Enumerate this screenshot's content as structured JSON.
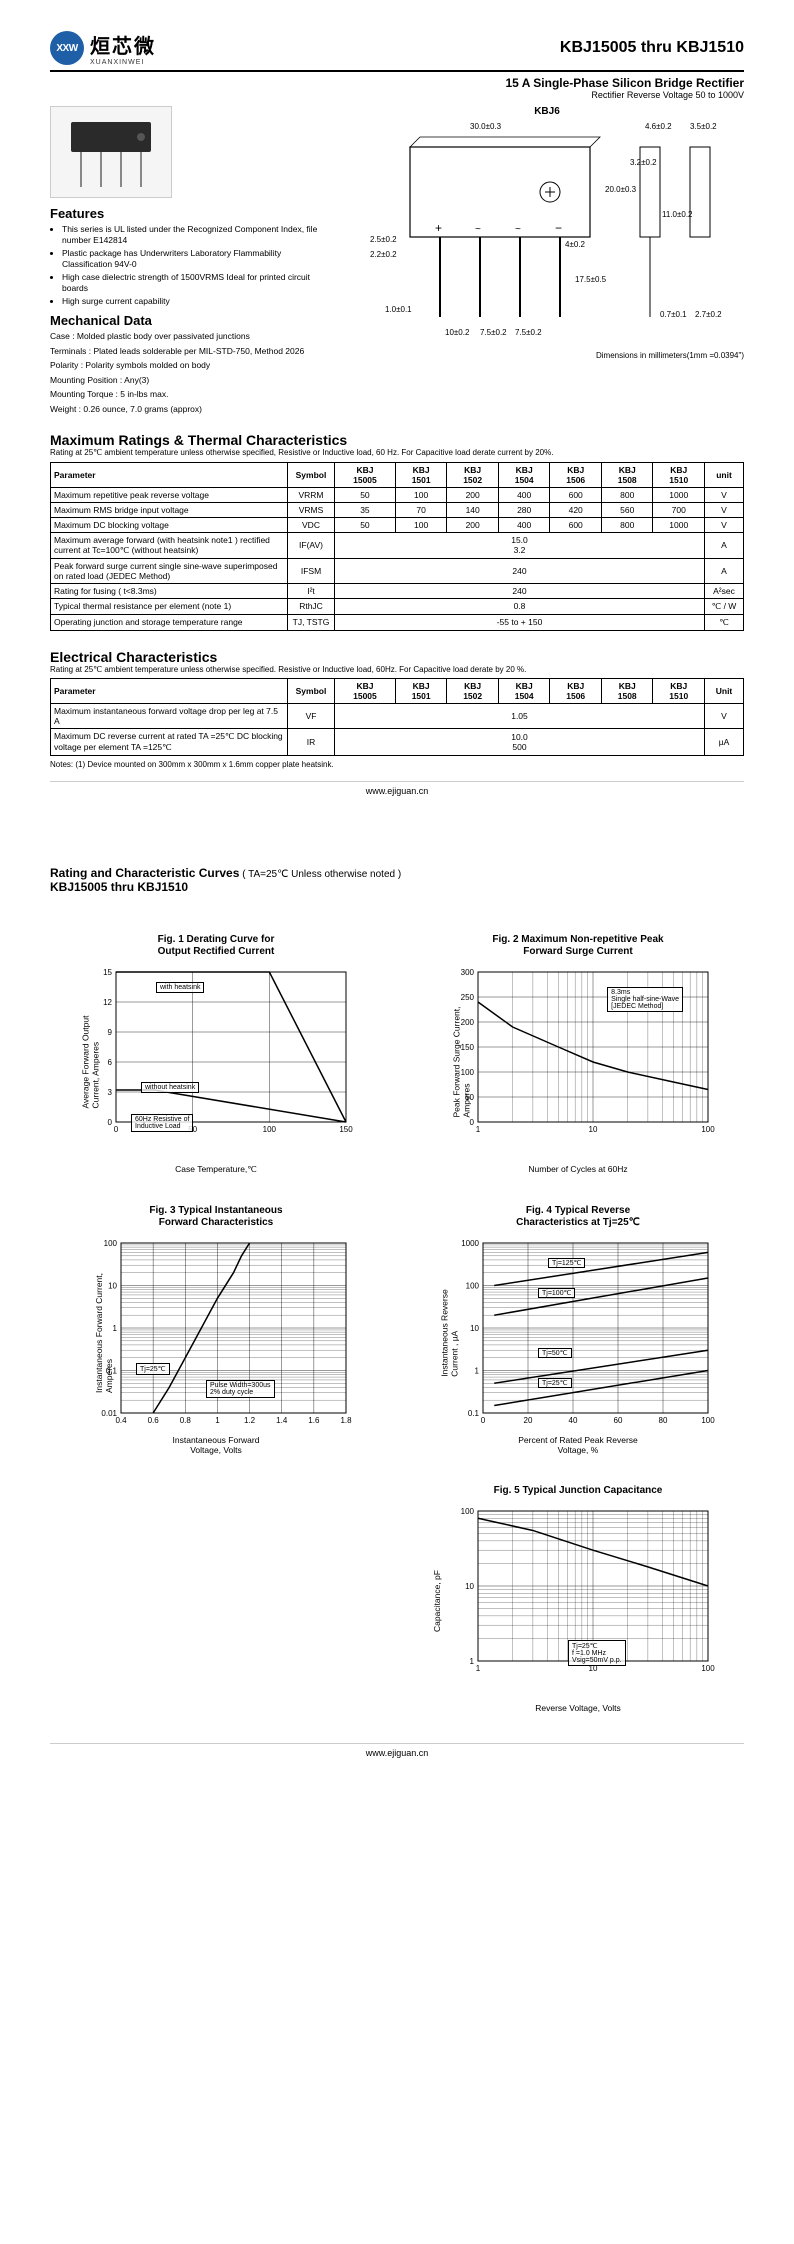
{
  "header": {
    "logo_abbrev": "XXW",
    "logo_cn": "烜芯微",
    "logo_en": "XUANXINWEI",
    "title": "KBJ15005 thru KBJ1510",
    "subtitle": "15 A Single-Phase Silicon Bridge Rectifier",
    "subtitle2": "Rectifier Reverse Voltage 50 to 1000V",
    "package_label": "KBJ6"
  },
  "features": {
    "heading": "Features",
    "items": [
      "This series is UL listed under the Recognized Component Index, file number E142814",
      "Plastic package has Underwriters Laboratory Flammability Classification 94V-0",
      "High case dielectric strength of 1500VRMS Ideal for printed circuit boards",
      "High surge current capability"
    ]
  },
  "mechanical": {
    "heading": "Mechanical Data",
    "case": "Case : Molded plastic body over passivated junctions",
    "terminals": "Terminals : Plated leads solderable per MIL-STD-750, Method 2026",
    "polarity": "Polarity : Polarity symbols molded on body",
    "mounting_pos": "Mounting Position : Any(3)",
    "mounting_torque": "Mounting Torque : 5 in-lbs max.",
    "weight": "Weight : 0.26 ounce, 7.0 grams (approx)"
  },
  "dimensions_note": "Dimensions in millimeters(1mm =0.0394\")",
  "dims": {
    "w": "30.0±0.3",
    "h": "20.0±0.3",
    "hole": "3.2±0.2",
    "edge1": "4.6±0.2",
    "edge2": "3.5±0.2",
    "pin_h": "11.0±0.2",
    "lead": "17.5±0.5",
    "t1": "2.5±0.2",
    "t2": "2.2±0.2",
    "t3": "1.0±0.1",
    "sp": "10±0.2",
    "sp2": "7.5±0.2",
    "sp3": "7.5±0.2",
    "w2": "4±0.2",
    "th": "0.7±0.1",
    "d1": "2.7±0.2"
  },
  "ratings": {
    "heading": "Maximum Ratings & Thermal Characteristics",
    "note": "Rating at 25℃ ambient temperature unless otherwise specified, Resistive or Inductive load, 60 Hz. For Capacitive load derate current by 20%.",
    "columns": [
      "Parameter",
      "Symbol",
      "KBJ 15005",
      "KBJ 1501",
      "KBJ 1502",
      "KBJ 1504",
      "KBJ 1506",
      "KBJ 1508",
      "KBJ 1510",
      "unit"
    ],
    "rows": [
      {
        "param": "Maximum repetitive peak reverse voltage",
        "sym": "VRRM",
        "vals": [
          "50",
          "100",
          "200",
          "400",
          "600",
          "800",
          "1000"
        ],
        "unit": "V"
      },
      {
        "param": "Maximum RMS bridge input voltage",
        "sym": "VRMS",
        "vals": [
          "35",
          "70",
          "140",
          "280",
          "420",
          "560",
          "700"
        ],
        "unit": "V"
      },
      {
        "param": "Maximum DC blocking voltage",
        "sym": "VDC",
        "vals": [
          "50",
          "100",
          "200",
          "400",
          "600",
          "800",
          "1000"
        ],
        "unit": "V"
      },
      {
        "param": "Maximum average forward (with heatsink note1 ) rectified current at Tc=100℃  (without heatsink)",
        "sym": "IF(AV)",
        "span": "15.0\n3.2",
        "unit": "A"
      },
      {
        "param": "Peak forward surge current single sine-wave superimposed on rated load (JEDEC Method)",
        "sym": "IFSM",
        "span": "240",
        "unit": "A"
      },
      {
        "param": "Rating for fusing ( t<8.3ms)",
        "sym": "I²t",
        "span": "240",
        "unit": "A²sec"
      },
      {
        "param": "Typical  thermal resistance per element (note 1)",
        "sym": "RthJC",
        "span": "0.8",
        "unit": "℃ / W"
      },
      {
        "param": "Operating junction and storage temperature range",
        "sym": "TJ, TSTG",
        "span": "-55 to + 150",
        "unit": "℃"
      }
    ]
  },
  "electrical": {
    "heading": "Electrical Characteristics",
    "note": "Rating at 25℃ ambient temperature unless otherwise specified. Resistive or Inductive load, 60Hz. For Capacitive load derate by 20 %.",
    "columns": [
      "Parameter",
      "Symbol",
      "KBJ 15005",
      "KBJ 1501",
      "KBJ 1502",
      "KBJ 1504",
      "KBJ 1506",
      "KBJ 1508",
      "KBJ 1510",
      "Unit"
    ],
    "rows": [
      {
        "param": "Maximum instantaneous forward voltage drop per leg at 7.5 A",
        "sym": "VF",
        "span": "1.05",
        "unit": "V"
      },
      {
        "param": "Maximum DC reverse current at rated  TA =25℃ DC blocking voltage per element      TA =125℃",
        "sym": "IR",
        "span": "10.0\n500",
        "unit": "µA"
      }
    ],
    "notes": "Notes: (1) Device mounted on 300mm x 300mm x 1.6mm copper plate heatsink."
  },
  "footer_url": "www.ejiguan.cn",
  "page2": {
    "heading": "Rating and Characteristic Curves",
    "heading_note": "( TA=25℃ Unless otherwise noted )",
    "subheading": "KBJ15005 thru KBJ1510"
  },
  "charts": {
    "fig1": {
      "title": "Fig. 1 Derating Curve for\nOutput Rectified Current",
      "ylabel": "Average Forward Output\nCurrent, Amperes",
      "xlabel": "Case Temperature,℃",
      "xticks": [
        0,
        50,
        100,
        150
      ],
      "yticks": [
        0,
        3.0,
        6.0,
        9.0,
        12.0,
        15.0
      ],
      "series": [
        {
          "label": "with heatsink",
          "points": [
            [
              0,
              15
            ],
            [
              100,
              15
            ],
            [
              150,
              0
            ]
          ]
        },
        {
          "label": "without heatsink",
          "points": [
            [
              0,
              3.2
            ],
            [
              25,
              3.2
            ],
            [
              150,
              0
            ]
          ]
        }
      ],
      "annots": [
        "with heatsink",
        "without heatsink",
        "60Hz Resistive of\nInductive Load"
      ],
      "grid_color": "#000"
    },
    "fig2": {
      "title": "Fig. 2 Maximum Non-repetitive Peak\nForward Surge Current",
      "ylabel": "Peak Forward Surge Current,\nAmperes",
      "xlabel": "Number of Cycles at 60Hz",
      "xticks": [
        1,
        10,
        100
      ],
      "yticks": [
        0,
        50,
        100,
        150,
        200,
        250,
        300
      ],
      "annot": "8.3ms\nSingle half-sine-Wave\n[JEDEC Method]",
      "series": [
        {
          "points": [
            [
              1,
              240
            ],
            [
              2,
              190
            ],
            [
              5,
              150
            ],
            [
              10,
              120
            ],
            [
              20,
              100
            ],
            [
              50,
              80
            ],
            [
              100,
              65
            ]
          ]
        }
      ]
    },
    "fig3": {
      "title": "Fig. 3 Typical Instantaneous\nForward Characteristics",
      "ylabel": "Instantaneous Forward Current,\nAmperes",
      "xlabel": "Instantaneous Forward\nVoltage, Volts",
      "xticks": [
        0.4,
        0.6,
        0.8,
        1.0,
        1.2,
        1.4,
        1.6,
        1.8
      ],
      "yticks": [
        0.01,
        0.1,
        1,
        10,
        100
      ],
      "annots": [
        "Tj=25℃",
        "Pulse Width=300us\n2% duty cycle"
      ],
      "series": [
        {
          "points": [
            [
              0.6,
              0.01
            ],
            [
              0.7,
              0.04
            ],
            [
              0.8,
              0.2
            ],
            [
              0.9,
              1
            ],
            [
              1.0,
              5
            ],
            [
              1.1,
              20
            ],
            [
              1.15,
              50
            ],
            [
              1.2,
              100
            ]
          ]
        }
      ]
    },
    "fig4": {
      "title": "Fig. 4 Typical Reverse\nCharacteristics at Tj=25℃",
      "ylabel": "Instantaneous Reverse\nCurrent , µA",
      "xlabel": "Percent of Rated Peak Reverse\nVoltage, %",
      "xticks": [
        0,
        20,
        40,
        60,
        80,
        100
      ],
      "yticks": [
        0.1,
        1,
        10,
        100,
        1000
      ],
      "annots": [
        "Tj=125℃",
        "Tj=100℃",
        "Tj=50℃",
        "Tj=25℃"
      ],
      "series": [
        {
          "points": [
            [
              5,
              100
            ],
            [
              100,
              600
            ]
          ]
        },
        {
          "points": [
            [
              5,
              20
            ],
            [
              100,
              150
            ]
          ]
        },
        {
          "points": [
            [
              5,
              0.5
            ],
            [
              100,
              3
            ]
          ]
        },
        {
          "points": [
            [
              5,
              0.15
            ],
            [
              100,
              1
            ]
          ]
        }
      ]
    },
    "fig5": {
      "title": "Fig. 5 Typical Junction Capacitance",
      "ylabel": "Capacitance, pF",
      "xlabel": "Reverse Voltage, Volts",
      "xticks": [
        1,
        10,
        100
      ],
      "yticks": [
        1.0,
        10,
        100
      ],
      "annot": "Tj=25℃\nf =1.0 MHz\nVsig=50mV p.p.",
      "series": [
        {
          "points": [
            [
              1,
              80
            ],
            [
              3,
              55
            ],
            [
              10,
              30
            ],
            [
              30,
              18
            ],
            [
              100,
              10
            ]
          ]
        }
      ]
    }
  }
}
